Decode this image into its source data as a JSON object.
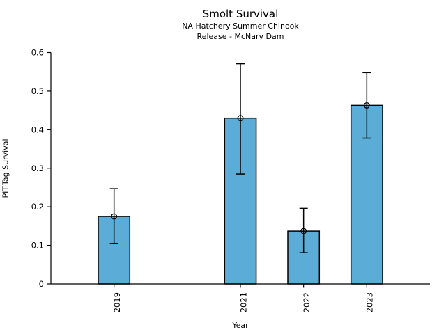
{
  "figure": {
    "title": "Smolt Survival",
    "subtitle_line1": "NA Hatchery Summer Chinook",
    "subtitle_line2": "Release - McNary Dam"
  },
  "chart_data": {
    "type": "bar",
    "title": "Smolt Survival",
    "subtitle": [
      "NA Hatchery Summer Chinook",
      "Release - McNary Dam"
    ],
    "xlabel": "Year",
    "ylabel": "PIT-Tag Survival",
    "categories": [
      "2019",
      "2021",
      "2022",
      "2023"
    ],
    "x": [
      2019,
      2021,
      2022,
      2023
    ],
    "values": [
      0.175,
      0.43,
      0.137,
      0.463
    ],
    "error_low": [
      0.105,
      0.285,
      0.081,
      0.378
    ],
    "error_high": [
      0.247,
      0.571,
      0.196,
      0.548
    ],
    "xlim": [
      2018,
      2024
    ],
    "ylim": [
      0,
      0.6
    ],
    "yticks": [
      0,
      0.1,
      0.2,
      0.3,
      0.4,
      0.5,
      0.6
    ],
    "ytick_labels": [
      "0",
      "0.1",
      "0.2",
      "0.3",
      "0.4",
      "0.5",
      "0.6"
    ],
    "bar_width_years": 0.5,
    "bar_color": "#5BACD6",
    "bar_edge_color": "#000000",
    "error_bar_color": "#000000",
    "marker": "open-circle",
    "grid": false,
    "legend": false,
    "xtick_rotation_deg": 90
  }
}
